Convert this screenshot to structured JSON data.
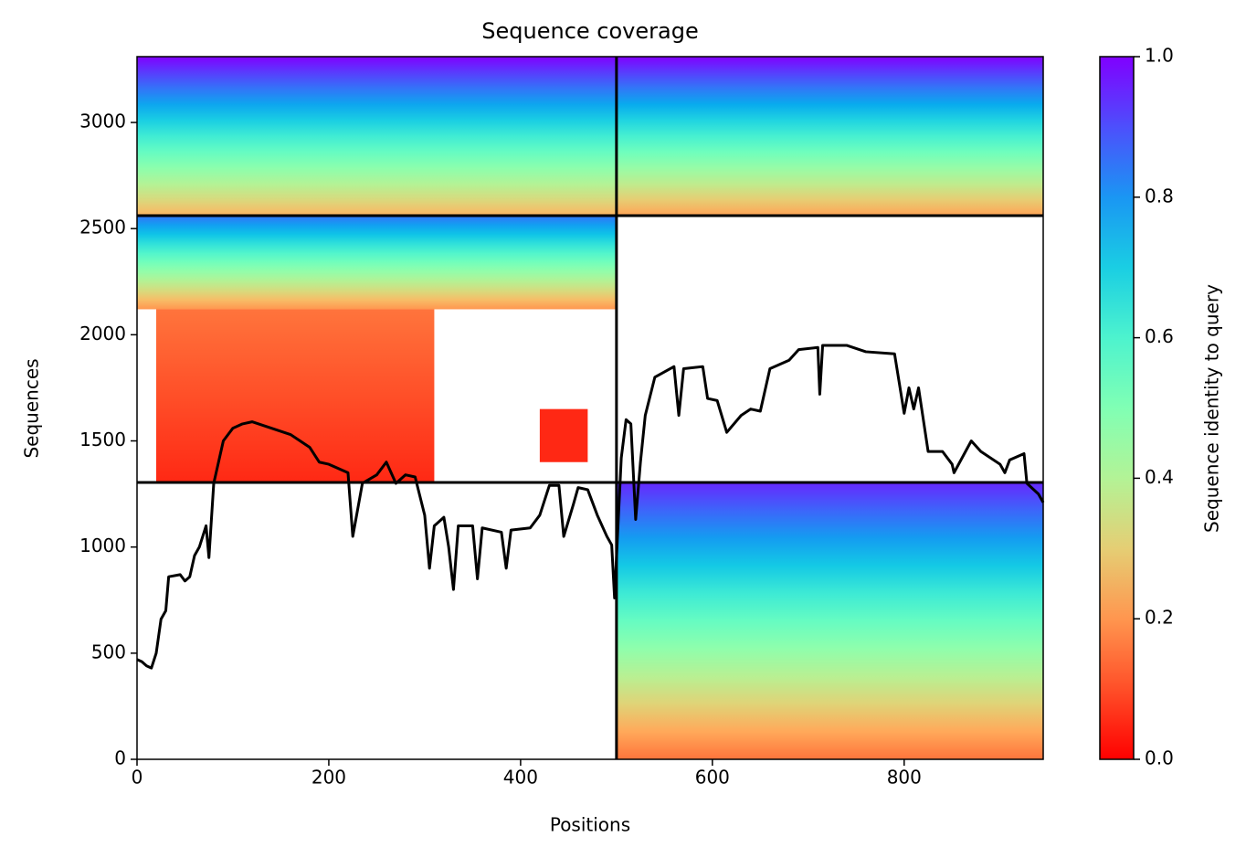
{
  "chart_data": {
    "type": "coverage",
    "title": "Sequence coverage",
    "x_label": "Positions",
    "y_label": "Sequences",
    "colorbar_label": "Sequence identity to query",
    "colormap": "rainbow_r",
    "xlim": [
      0,
      945
    ],
    "ylim": [
      0,
      3310
    ],
    "xticks": [
      0,
      200,
      400,
      600,
      800
    ],
    "yticks": [
      0,
      500,
      1000,
      1500,
      2000,
      2500,
      3000
    ],
    "colorbar_lim": [
      0,
      1
    ],
    "colorbar_ticks": [
      {
        "value": 0,
        "label": "0.0"
      },
      0.2,
      0.4,
      0.6,
      0.8,
      {
        "value": 1,
        "label": "1.0"
      }
    ],
    "blocks": [
      {
        "x": [
          0,
          500
        ],
        "y": [
          2561,
          3310
        ],
        "identity": [
          1.0,
          0.25
        ]
      },
      {
        "x": [
          500,
          945
        ],
        "y": [
          2561,
          3310
        ],
        "identity": [
          1.0,
          0.22
        ]
      },
      {
        "x": [
          0,
          500
        ],
        "y": [
          2120,
          2561
        ],
        "identity": [
          0.85,
          0.2
        ]
      },
      {
        "x": [
          20,
          310
        ],
        "y": [
          1304,
          2120
        ],
        "identity": [
          0.15,
          0.05
        ]
      },
      {
        "x": [
          420,
          470
        ],
        "y": [
          1400,
          1650
        ],
        "identity": [
          0.05,
          0.05
        ]
      },
      {
        "x": [
          500,
          945
        ],
        "y": [
          0,
          1304
        ],
        "identity": [
          0.95,
          0.15
        ]
      }
    ],
    "boundaries_x": [
      500
    ],
    "boundaries_y": [
      1304,
      2561
    ],
    "line_color": "#000000",
    "coverage_x": [
      0,
      5,
      10,
      15,
      20,
      25,
      30,
      33,
      45,
      50,
      55,
      60,
      65,
      72,
      75,
      80,
      90,
      100,
      110,
      120,
      140,
      160,
      180,
      190,
      200,
      220,
      225,
      235,
      250,
      260,
      270,
      280,
      290,
      300,
      305,
      310,
      320,
      325,
      330,
      335,
      350,
      355,
      360,
      380,
      385,
      390,
      410,
      420,
      430,
      440,
      445,
      455,
      460,
      470,
      480,
      490,
      495,
      498,
      502,
      505,
      510,
      515,
      520,
      525,
      530,
      540,
      560,
      565,
      570,
      590,
      595,
      605,
      615,
      630,
      640,
      650,
      660,
      680,
      690,
      710,
      712,
      715,
      740,
      760,
      790,
      800,
      805,
      810,
      815,
      825,
      840,
      850,
      852,
      870,
      880,
      900,
      905,
      910,
      925,
      928,
      940,
      945
    ],
    "coverage_y": [
      470,
      460,
      440,
      430,
      500,
      660,
      700,
      860,
      870,
      840,
      860,
      960,
      1000,
      1100,
      950,
      1300,
      1500,
      1560,
      1580,
      1590,
      1560,
      1530,
      1470,
      1400,
      1390,
      1350,
      1050,
      1300,
      1340,
      1400,
      1300,
      1340,
      1330,
      1150,
      900,
      1100,
      1140,
      1000,
      800,
      1100,
      1100,
      850,
      1090,
      1070,
      900,
      1080,
      1090,
      1150,
      1290,
      1290,
      1050,
      1200,
      1280,
      1270,
      1150,
      1050,
      1010,
      760,
      1140,
      1420,
      1600,
      1580,
      1130,
      1400,
      1620,
      1800,
      1850,
      1620,
      1840,
      1850,
      1700,
      1690,
      1540,
      1620,
      1650,
      1640,
      1840,
      1880,
      1930,
      1940,
      1720,
      1950,
      1950,
      1920,
      1910,
      1630,
      1750,
      1650,
      1750,
      1450,
      1450,
      1390,
      1350,
      1500,
      1450,
      1390,
      1350,
      1410,
      1440,
      1300,
      1250,
      1210
    ]
  }
}
